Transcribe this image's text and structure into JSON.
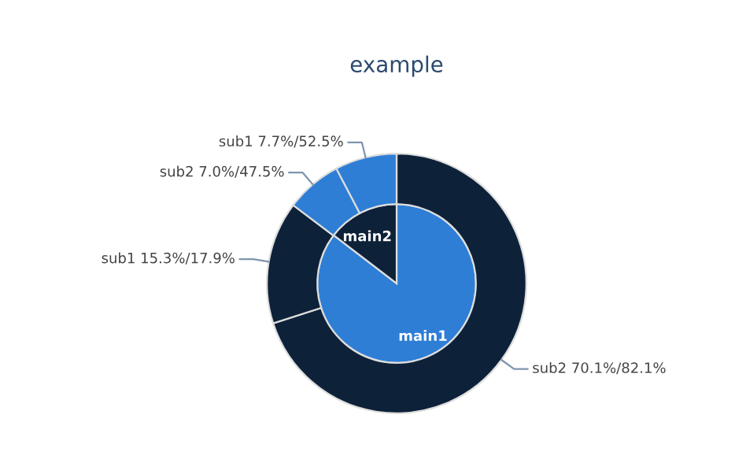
{
  "chart_data": {
    "type": "donut",
    "title": "example",
    "categories": [
      "main1",
      "main2",
      "sub2",
      "sub1",
      "sub2",
      "sub1"
    ],
    "series": [
      {
        "type": "pie",
        "values": [
          85.4,
          14.6,
          null,
          null,
          null,
          null
        ],
        "colors": [
          "#2e7ed6",
          "#0d2139",
          null,
          null,
          null,
          null
        ]
      },
      {
        "type": "donut",
        "values": [
          null,
          null,
          70.1,
          15.3,
          7.0,
          7.7
        ],
        "colors": [
          null,
          null,
          "#0d2139",
          "#0d2139",
          "#2e7ed6",
          "#2e7ed6"
        ],
        "value_labels": [
          null,
          null,
          "70.1%/82.1%",
          "15.3%/17.9%",
          "7.0%/47.5%",
          "7.7%/52.5%"
        ]
      }
    ]
  }
}
